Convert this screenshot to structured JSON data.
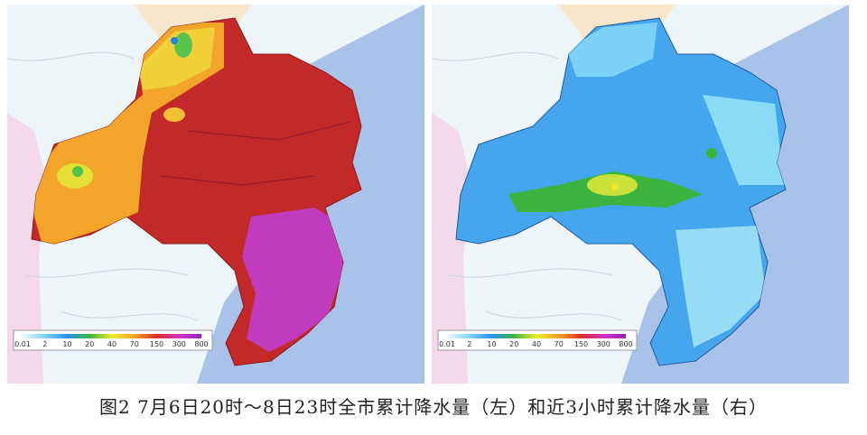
{
  "caption": "图2  7月6日20时～8日23时全市累计降水量（左）和近3小时累计降水量（右）",
  "maps": [
    {
      "legend": {
        "labels": [
          "0.01",
          "2",
          "10",
          "20",
          "40",
          "70",
          "150",
          "300",
          "800"
        ],
        "colors": [
          "#e8fbff",
          "#7fd6fb",
          "#2a8ff0",
          "#3cb83c",
          "#eeea2a",
          "#f6a224",
          "#de2e24",
          "#d232c8",
          "#9a20b8"
        ]
      }
    },
    {
      "legend": {
        "labels": [
          "0.01",
          "2",
          "10",
          "20",
          "40",
          "70",
          "150",
          "300",
          "800"
        ],
        "colors": [
          "#e8fbff",
          "#7fd6fb",
          "#2a8ff0",
          "#3cb83c",
          "#eeea2a",
          "#f6a224",
          "#de2e24",
          "#d232c8",
          "#9a20b8"
        ]
      }
    }
  ]
}
